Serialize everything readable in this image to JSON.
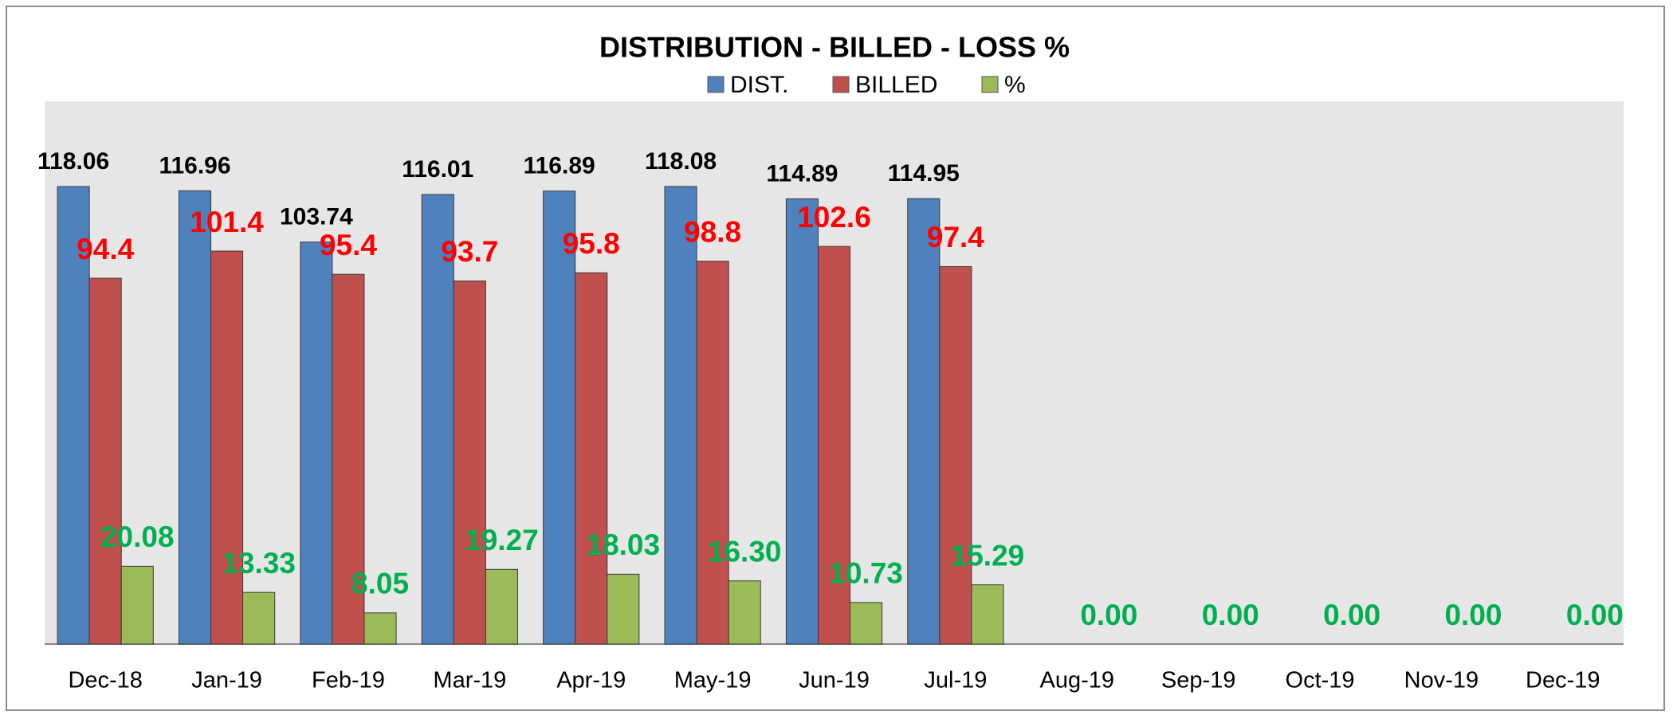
{
  "chart_data": {
    "type": "bar",
    "title": "DISTRIBUTION - BILLED - LOSS %",
    "categories": [
      "Dec-18",
      "Jan-19",
      "Feb-19",
      "Mar-19",
      "Apr-19",
      "May-19",
      "Jun-19",
      "Jul-19",
      "Aug-19",
      "Sep-19",
      "Oct-19",
      "Nov-19",
      "Dec-19"
    ],
    "series": [
      {
        "name": "DIST.",
        "color": "#4f81bd",
        "label_color": "#000000",
        "values": [
          118.06,
          116.96,
          103.74,
          116.01,
          116.89,
          118.08,
          114.89,
          114.95,
          null,
          null,
          null,
          null,
          null
        ]
      },
      {
        "name": "BILLED",
        "color": "#c0504d",
        "label_color": "#ff0000",
        "values": [
          94.4,
          101.4,
          95.4,
          93.7,
          95.8,
          98.8,
          102.6,
          97.4,
          null,
          null,
          null,
          null,
          null
        ]
      },
      {
        "name": "%",
        "color": "#9bbb59",
        "label_color": "#00b050",
        "values": [
          20.08,
          13.33,
          8.05,
          19.27,
          18.03,
          16.3,
          10.73,
          15.29,
          0,
          0,
          0,
          0,
          0
        ],
        "value_labels": [
          "20.08",
          "13.33",
          "8.05",
          "19.27",
          "18.03",
          "16.30",
          "10.73",
          "15.29",
          "0.00",
          "0.00",
          "0.00",
          "0.00",
          "0.00"
        ]
      }
    ],
    "legend": "top"
  }
}
